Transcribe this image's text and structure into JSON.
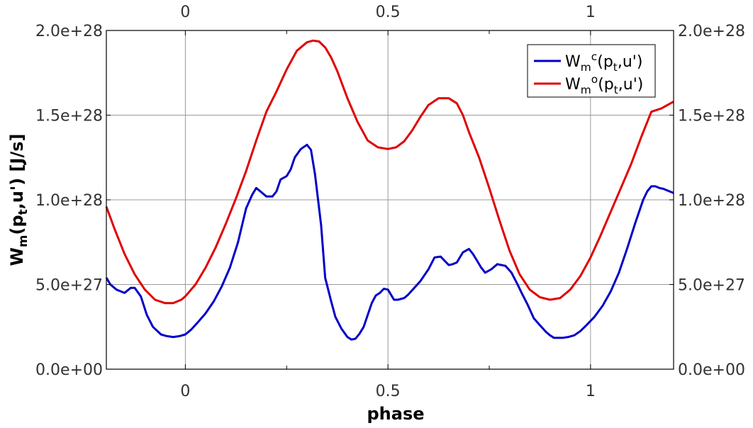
{
  "chart_data": {
    "type": "line",
    "xlabel": "phase",
    "ylabel": "W_m(p_t,u') [J/s]",
    "xlim": [
      -0.195,
      1.205
    ],
    "ylim": [
      0,
      2e+28
    ],
    "grid": true,
    "legend_position": "top-right",
    "x_ticks": [
      {
        "value": 0,
        "label": "0"
      },
      {
        "value": 0.5,
        "label": "0.5"
      },
      {
        "value": 1,
        "label": "1"
      }
    ],
    "x_minor_ticks": [
      0.25,
      0.75
    ],
    "y_ticks": [
      {
        "value": 0,
        "label": "0.0e+00"
      },
      {
        "value": 5e+27,
        "label": "5.0e+27"
      },
      {
        "value": 1e+28,
        "label": "1.0e+28"
      },
      {
        "value": 1.5e+28,
        "label": "1.5e+28"
      },
      {
        "value": 2e+28,
        "label": "2.0e+28"
      }
    ],
    "series": [
      {
        "name": "W_m^c(p_t,u')",
        "color": "#0000c8",
        "x": [
          -0.195,
          -0.185,
          -0.17,
          -0.15,
          -0.135,
          -0.125,
          -0.11,
          -0.095,
          -0.08,
          -0.06,
          -0.045,
          -0.03,
          -0.015,
          0.0,
          0.015,
          0.03,
          0.05,
          0.07,
          0.09,
          0.11,
          0.13,
          0.15,
          0.165,
          0.175,
          0.185,
          0.2,
          0.215,
          0.225,
          0.235,
          0.25,
          0.26,
          0.27,
          0.285,
          0.3,
          0.31,
          0.32,
          0.335,
          0.345,
          0.36,
          0.37,
          0.385,
          0.4,
          0.41,
          0.42,
          0.43,
          0.44,
          0.45,
          0.46,
          0.47,
          0.48,
          0.49,
          0.5,
          0.515,
          0.525,
          0.54,
          0.55,
          0.565,
          0.58,
          0.6,
          0.615,
          0.63,
          0.64,
          0.65,
          0.66,
          0.67,
          0.685,
          0.7,
          0.71,
          0.72,
          0.73,
          0.74,
          0.755,
          0.77,
          0.78,
          0.79,
          0.805,
          0.82,
          0.83,
          0.845,
          0.86,
          0.875,
          0.89,
          0.9,
          0.91,
          0.92,
          0.93,
          0.945,
          0.96,
          0.975,
          0.99,
          1.01,
          1.03,
          1.05,
          1.07,
          1.09,
          1.11,
          1.13,
          1.14,
          1.15,
          1.16,
          1.17,
          1.18,
          1.19,
          1.205
        ],
        "y": [
          5.4e+27,
          5e+27,
          4.7e+27,
          4.5e+27,
          4.8e+27,
          4.8e+27,
          4.3e+27,
          3.2e+27,
          2.5e+27,
          2.05e+27,
          1.95e+27,
          1.9e+27,
          1.95e+27,
          2.05e+27,
          2.35e+27,
          2.75e+27,
          3.3e+27,
          4e+27,
          4.9e+27,
          6e+27,
          7.5e+27,
          9.5e+27,
          1.03e+28,
          1.07e+28,
          1.05e+28,
          1.02e+28,
          1.02e+28,
          1.05e+28,
          1.12e+28,
          1.14e+28,
          1.18e+28,
          1.25e+28,
          1.3e+28,
          1.325e+28,
          1.295e+28,
          1.15e+28,
          8.5e+27,
          5.4e+27,
          4e+27,
          3.1e+27,
          2.4e+27,
          1.9e+27,
          1.75e+27,
          1.8e+27,
          2.1e+27,
          2.5e+27,
          3.2e+27,
          3.9e+27,
          4.35e+27,
          4.5e+27,
          4.75e+27,
          4.7e+27,
          4.1e+27,
          4.1e+27,
          4.2e+27,
          4.4e+27,
          4.8e+27,
          5.2e+27,
          5.9e+27,
          6.6e+27,
          6.65e+27,
          6.4e+27,
          6.15e+27,
          6.2e+27,
          6.3e+27,
          6.9e+27,
          7.1e+27,
          6.8e+27,
          6.4e+27,
          6e+27,
          5.7e+27,
          5.9e+27,
          6.2e+27,
          6.15e+27,
          6.1e+27,
          5.7e+27,
          5e+27,
          4.5e+27,
          3.8e+27,
          3e+27,
          2.6e+27,
          2.2e+27,
          2e+27,
          1.85e+27,
          1.85e+27,
          1.85e+27,
          1.9e+27,
          2e+27,
          2.25e+27,
          2.6e+27,
          3.1e+27,
          3.75e+27,
          4.6e+27,
          5.7e+27,
          7.1e+27,
          8.6e+27,
          1e+28,
          1.05e+28,
          1.08e+28,
          1.08e+28,
          1.07e+28,
          1.065e+28,
          1.055e+28,
          1.04e+28
        ]
      },
      {
        "name": "W_m^o(p_t,u')",
        "color": "#e00000",
        "x": [
          -0.195,
          -0.175,
          -0.15,
          -0.125,
          -0.1,
          -0.075,
          -0.05,
          -0.03,
          -0.01,
          0.0,
          0.025,
          0.05,
          0.075,
          0.1,
          0.125,
          0.15,
          0.175,
          0.2,
          0.225,
          0.25,
          0.275,
          0.3,
          0.315,
          0.33,
          0.345,
          0.36,
          0.375,
          0.4,
          0.425,
          0.45,
          0.475,
          0.5,
          0.52,
          0.54,
          0.56,
          0.58,
          0.6,
          0.625,
          0.65,
          0.67,
          0.685,
          0.7,
          0.725,
          0.75,
          0.775,
          0.8,
          0.825,
          0.85,
          0.875,
          0.9,
          0.925,
          0.95,
          0.975,
          1.0,
          1.025,
          1.05,
          1.075,
          1.1,
          1.125,
          1.15,
          1.175,
          1.205
        ],
        "y": [
          9.6e+27,
          8.3e+27,
          6.8e+27,
          5.6e+27,
          4.7e+27,
          4.1e+27,
          3.9e+27,
          3.9e+27,
          4.1e+27,
          4.3e+27,
          5e+27,
          6e+27,
          7.2e+27,
          8.6e+27,
          1.01e+28,
          1.17e+28,
          1.35e+28,
          1.52e+28,
          1.64e+28,
          1.77e+28,
          1.88e+28,
          1.93e+28,
          1.94e+28,
          1.935e+28,
          1.9e+28,
          1.84e+28,
          1.76e+28,
          1.6e+28,
          1.46e+28,
          1.35e+28,
          1.31e+28,
          1.3e+28,
          1.31e+28,
          1.345e+28,
          1.41e+28,
          1.49e+28,
          1.56e+28,
          1.6e+28,
          1.6e+28,
          1.57e+28,
          1.5e+28,
          1.4e+28,
          1.25e+28,
          1.07e+28,
          8.8e+27,
          7e+27,
          5.6e+27,
          4.7e+27,
          4.25e+27,
          4.1e+27,
          4.2e+27,
          4.7e+27,
          5.5e+27,
          6.6e+27,
          7.9e+27,
          9.3e+27,
          1.07e+28,
          1.21e+28,
          1.37e+28,
          1.52e+28,
          1.54e+28,
          1.58e+28
        ]
      }
    ]
  }
}
